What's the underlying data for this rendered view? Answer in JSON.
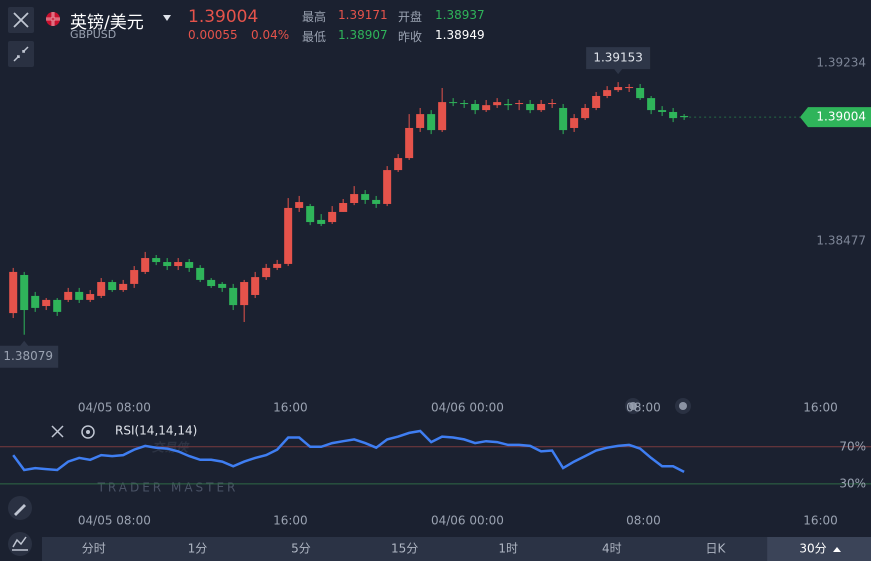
{
  "header": {
    "name": "英镑/美元",
    "symbol": "GBPUSD",
    "price": "1.39004",
    "change": "0.00055",
    "change_pct": "0.04%",
    "stats": [
      {
        "label": "最高",
        "value": "1.39171"
      },
      {
        "label": "开盘",
        "value": "1.38937"
      },
      {
        "label": "最低",
        "value": "1.38907"
      },
      {
        "label": "昨收",
        "value": "1.38949"
      }
    ]
  },
  "watermark": {
    "title": "交易侠",
    "subtitle": "TRADER MASTER"
  },
  "tabs": [
    "分时",
    "1分",
    "5分",
    "15分",
    "1时",
    "4时",
    "日K",
    "30分"
  ],
  "selected_tab": 7,
  "chart_data": [
    {
      "type": "candlestick",
      "up_color": "#e5534b",
      "down_color": "#2fb45a",
      "open": [
        1.38171,
        1.38333,
        1.38244,
        1.38201,
        1.38227,
        1.38227,
        1.38261,
        1.38227,
        1.38244,
        1.38303,
        1.38269,
        1.38295,
        1.38346,
        1.38405,
        1.38388,
        1.38371,
        1.38388,
        1.38363,
        1.38312,
        1.38295,
        1.38278,
        1.38205,
        1.38248,
        1.38324,
        1.38363,
        1.3838,
        1.38618,
        1.38626,
        1.38567,
        1.38558,
        1.38601,
        1.38639,
        1.38677,
        1.38652,
        1.38635,
        1.38779,
        1.3883,
        1.38958,
        1.39017,
        1.38949,
        1.39068,
        1.39064,
        1.3906,
        1.39034,
        1.39055,
        1.3906,
        1.3906,
        1.3906,
        1.39034,
        1.3906,
        1.39043,
        1.38958,
        1.39,
        1.39043,
        1.39094,
        1.39119,
        1.39128,
        1.39128,
        1.39085,
        1.39034,
        1.39026,
        1.39009
      ],
      "high": [
        1.38363,
        1.38346,
        1.38261,
        1.38235,
        1.38235,
        1.38278,
        1.38278,
        1.38269,
        1.3832,
        1.38312,
        1.38312,
        1.38371,
        1.38431,
        1.38418,
        1.38405,
        1.38405,
        1.38401,
        1.38375,
        1.3832,
        1.38303,
        1.38295,
        1.38312,
        1.38346,
        1.3838,
        1.38397,
        1.3866,
        1.38669,
        1.38635,
        1.38592,
        1.38626,
        1.38656,
        1.38711,
        1.38694,
        1.38669,
        1.38796,
        1.38847,
        1.39017,
        1.39043,
        1.39034,
        1.39128,
        1.39085,
        1.39077,
        1.39077,
        1.39077,
        1.39085,
        1.39081,
        1.39077,
        1.39077,
        1.39077,
        1.39081,
        1.3906,
        1.39017,
        1.3906,
        1.39111,
        1.39136,
        1.39153,
        1.39145,
        1.39145,
        1.39094,
        1.39051,
        1.39043,
        1.39017
      ],
      "low": [
        1.3815,
        1.38079,
        1.38176,
        1.38184,
        1.38159,
        1.38218,
        1.38214,
        1.38218,
        1.38235,
        1.38261,
        1.38261,
        1.38278,
        1.38337,
        1.38375,
        1.38354,
        1.38354,
        1.38346,
        1.38303,
        1.38278,
        1.38261,
        1.38184,
        1.38133,
        1.38235,
        1.38312,
        1.38354,
        1.38371,
        1.38601,
        1.38545,
        1.38541,
        1.3855,
        1.38601,
        1.3863,
        1.38635,
        1.38618,
        1.38626,
        1.38771,
        1.38822,
        1.38941,
        1.38932,
        1.38941,
        1.39051,
        1.39043,
        1.39017,
        1.39026,
        1.39043,
        1.39034,
        1.39034,
        1.39021,
        1.39026,
        1.39043,
        1.38932,
        1.38941,
        1.38992,
        1.39034,
        1.39085,
        1.39111,
        1.39111,
        1.39077,
        1.39017,
        1.39009,
        1.38983,
        1.38992
      ],
      "close": [
        1.38346,
        1.38184,
        1.38193,
        1.38227,
        1.38176,
        1.38261,
        1.38227,
        1.38252,
        1.38303,
        1.38269,
        1.38295,
        1.38354,
        1.38405,
        1.38388,
        1.38371,
        1.38388,
        1.38363,
        1.38312,
        1.38286,
        1.38278,
        1.38205,
        1.38303,
        1.38324,
        1.38363,
        1.3838,
        1.38618,
        1.38643,
        1.38558,
        1.3855,
        1.38601,
        1.38639,
        1.38677,
        1.38652,
        1.38635,
        1.38779,
        1.3883,
        1.38958,
        1.39017,
        1.38949,
        1.39068,
        1.39064,
        1.3906,
        1.39034,
        1.39055,
        1.39068,
        1.39055,
        1.39064,
        1.39034,
        1.3906,
        1.39064,
        1.38949,
        1.39,
        1.39043,
        1.39094,
        1.39119,
        1.39132,
        1.39132,
        1.39085,
        1.39034,
        1.39026,
        1.39,
        1.39004
      ],
      "high_marker": 55,
      "low_marker": 1,
      "last_color": "#2fb45a",
      "xlim": [
        -1.2,
        77.9
      ],
      "xticks": [
        {
          "value": 9.2,
          "label": "04/05 08:00"
        },
        {
          "value": 25.2,
          "label": "16:00"
        },
        {
          "value": 41.3,
          "label": "04/06 00:00"
        },
        {
          "value": 57.3,
          "label": "08:00"
        },
        {
          "value": 73.4,
          "label": "16:00"
        }
      ],
      "ylim": [
        1.37844,
        1.39332
      ],
      "yticks": [
        1.38477,
        1.39234
      ]
    },
    {
      "type": "line",
      "title": "RSI(14,14,14)",
      "series": [
        {
          "color": "#3f7ef2",
          "values": [
            61,
            45,
            47,
            46,
            45,
            54,
            58,
            56,
            61,
            60,
            61,
            67,
            71,
            69,
            68,
            65,
            60,
            56,
            56,
            54,
            49,
            54,
            58,
            61,
            67,
            80,
            80,
            70,
            70,
            74,
            76,
            78,
            74,
            69,
            78,
            81,
            85,
            87,
            75,
            81,
            80,
            78,
            74,
            76,
            75,
            72,
            72,
            71,
            65,
            66,
            47,
            54,
            60,
            66,
            69,
            71,
            72,
            68,
            58,
            49,
            49,
            43
          ]
        }
      ],
      "xlim": [
        -1.2,
        77.9
      ],
      "xticks": [
        {
          "value": 9.2,
          "label": "04/05 08:00"
        },
        {
          "value": 25.2,
          "label": "16:00"
        },
        {
          "value": 41.3,
          "label": "04/06 00:00"
        },
        {
          "value": 57.3,
          "label": "08:00"
        },
        {
          "value": 73.4,
          "label": "16:00"
        }
      ],
      "ylim": [
        17,
        101
      ],
      "yticks": [
        {
          "value": 70,
          "label": "70%"
        },
        {
          "value": 30,
          "label": "30%"
        }
      ],
      "tick_colors": [
        "#7a3a3e",
        "#2f6a45"
      ]
    }
  ]
}
